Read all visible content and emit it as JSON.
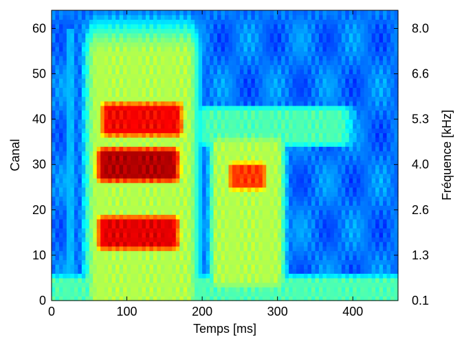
{
  "chart_data": {
    "type": "heatmap",
    "title": "",
    "xlabel": "Temps [ms]",
    "ylabel": "Canal",
    "y2label": "Fréquence [kHz]",
    "xlim": [
      0,
      460
    ],
    "ylim": [
      0,
      64
    ],
    "grid": false,
    "colormap": "jet",
    "x_ticks": [
      0,
      100,
      200,
      300,
      400
    ],
    "x_tick_labels": [
      "0",
      "100",
      "200",
      "300",
      "400"
    ],
    "y_ticks": [
      0,
      10,
      20,
      30,
      40,
      50,
      60
    ],
    "y_tick_labels": [
      "0",
      "10",
      "20",
      "30",
      "40",
      "50",
      "60"
    ],
    "y2_ticks": [
      0,
      10,
      20,
      30,
      40,
      50,
      60
    ],
    "y2_tick_labels": [
      "0.1",
      "1.3",
      "2.6",
      "4.0",
      "5.3",
      "6.6",
      "8.0"
    ],
    "colors": {
      "background_low": "#0a1eff",
      "mid": "#3fc8ff",
      "high": "#ffe600",
      "peak": "#c00000"
    },
    "regions": [
      {
        "x": [
          60,
          180
        ],
        "y": [
          0,
          54
        ],
        "intensity": 0.55
      },
      {
        "x": [
          70,
          160
        ],
        "y": [
          12,
          18
        ],
        "intensity": 0.9
      },
      {
        "x": [
          70,
          160
        ],
        "y": [
          27,
          33
        ],
        "intensity": 0.95
      },
      {
        "x": [
          75,
          165
        ],
        "y": [
          37,
          43
        ],
        "intensity": 0.88
      },
      {
        "x": [
          220,
          300
        ],
        "y": [
          5,
          34
        ],
        "intensity": 0.55
      },
      {
        "x": [
          240,
          280
        ],
        "y": [
          25,
          30
        ],
        "intensity": 0.82
      },
      {
        "x": [
          210,
          380
        ],
        "y": [
          35,
          42
        ],
        "intensity": 0.45
      },
      {
        "x": [
          10,
          460
        ],
        "y": [
          0,
          5
        ],
        "intensity": 0.45
      }
    ]
  }
}
